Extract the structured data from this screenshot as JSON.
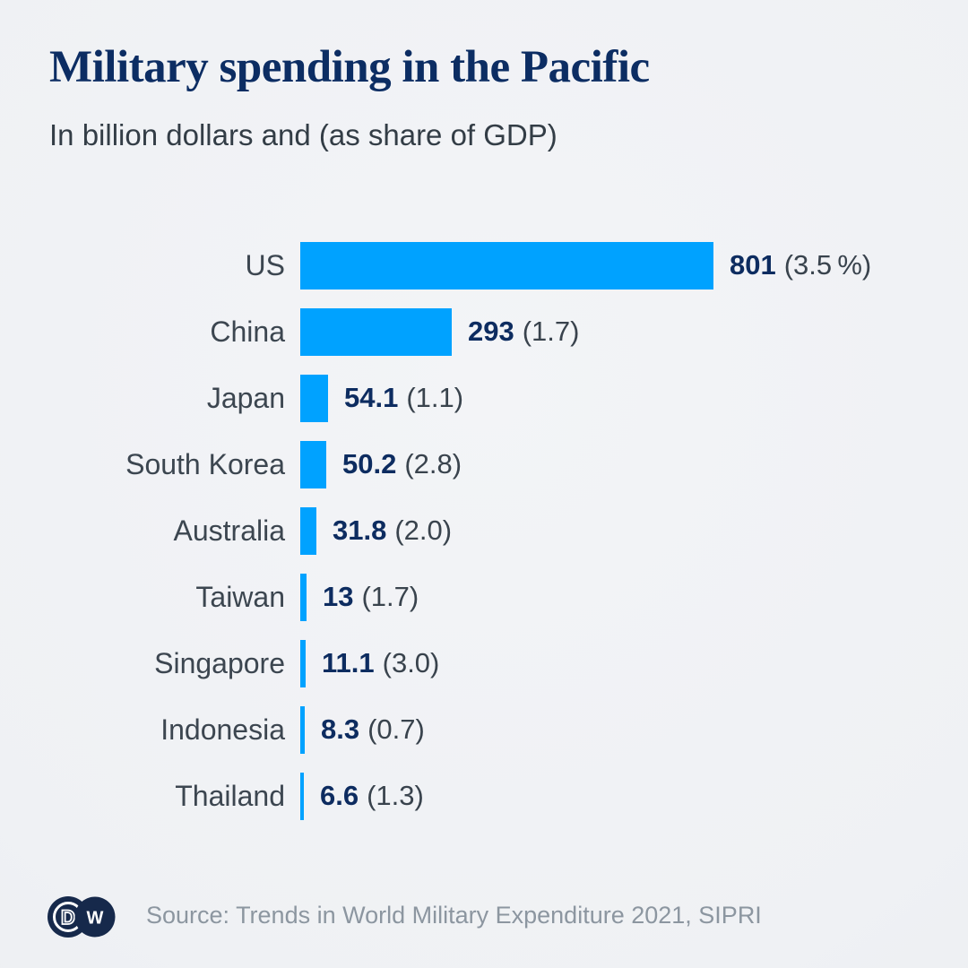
{
  "header": {
    "title": "Military spending in the Pacific",
    "subtitle": "In billion dollars and (as share of GDP)"
  },
  "chart_data": {
    "type": "bar",
    "orientation": "horizontal",
    "title": "Military spending in the Pacific",
    "subtitle": "In billion dollars and (as share of GDP)",
    "unit": "billion US dollars",
    "categories": [
      "US",
      "China",
      "Japan",
      "South Korea",
      "Australia",
      "Taiwan",
      "Singapore",
      "Indonesia",
      "Thailand"
    ],
    "values": [
      801,
      293,
      54.1,
      50.2,
      31.8,
      13,
      11.1,
      8.3,
      6.6
    ],
    "value_labels": [
      "801",
      "293",
      "54.1",
      "50.2",
      "31.8",
      "13",
      "11.1",
      "8.3",
      "6.6"
    ],
    "gdp_share_values": [
      3.5,
      1.7,
      1.1,
      2.8,
      2.0,
      1.7,
      3.0,
      0.7,
      1.3
    ],
    "gdp_share_labels": [
      "(3.5 %)",
      "(1.7)",
      "(1.1)",
      "(2.8)",
      "(2.0)",
      "(1.7)",
      "(3.0)",
      "(0.7)",
      "(1.3)"
    ],
    "axis_max": 801,
    "bar_color": "#00a2ff",
    "grid": false,
    "legend": false
  },
  "footer": {
    "logo": "dw-logo",
    "source": "Source: Trends in World Military Expenditure 2021, SIPRI"
  },
  "colors": {
    "background": "#eff1f4",
    "bar": "#00a2ff",
    "title_navy": "#0c2d63",
    "value_navy": "#0d2c60",
    "label_gray": "#3c4650",
    "subtitle_gray": "#333d46",
    "source_gray": "#8c96a0",
    "logo_navy": "#16294b"
  }
}
